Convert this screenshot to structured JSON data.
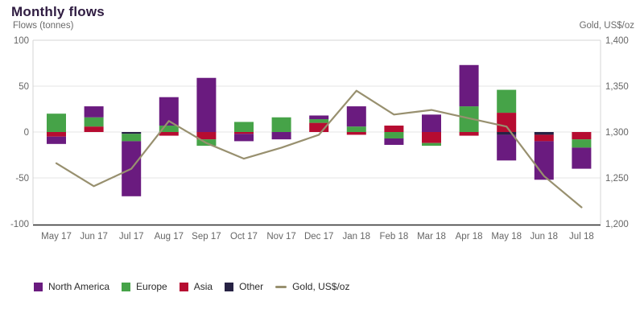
{
  "page": {
    "title": "Monthly flows",
    "left_axis_title": "Flows (tonnes)",
    "right_axis_title": "Gold, US$/oz"
  },
  "chart_data": {
    "type": "bar",
    "subtype": "stacked-columns-with-line-overlay",
    "title": "Monthly flows",
    "ylabel_left": "Flows (tonnes)",
    "ylabel_right": "Gold, US$/oz",
    "grid": true,
    "legend_position": "bottom-left",
    "categories": [
      "May 17",
      "Jun 17",
      "Jul 17",
      "Aug 17",
      "Sep 17",
      "Oct 17",
      "Nov 17",
      "Dec 17",
      "Jan 18",
      "Feb 18",
      "Mar 18",
      "Apr 18",
      "May 18",
      "Jun 18",
      "Jul 18"
    ],
    "series": [
      {
        "name": "North America",
        "color": "#6a1b7f",
        "values": [
          -8,
          12,
          -60,
          31,
          59,
          -8,
          -8,
          4,
          22,
          -7,
          19,
          45,
          -28,
          -42,
          -23
        ]
      },
      {
        "name": "Europe",
        "color": "#46a348",
        "values": [
          20,
          10,
          -8,
          7,
          -7,
          11,
          16,
          4,
          6,
          -7,
          -3,
          28,
          25,
          0,
          -9
        ]
      },
      {
        "name": "Asia",
        "color": "#b60c31",
        "values": [
          -5,
          6,
          0,
          -4,
          -8,
          -2,
          0,
          10,
          -3,
          7,
          -12,
          -4,
          21,
          -7,
          -8
        ]
      },
      {
        "name": "Other",
        "color": "#272244",
        "values": [
          0,
          0,
          -2,
          0,
          0,
          0,
          0,
          0,
          0,
          0,
          0,
          0,
          -3,
          -3,
          0
        ]
      }
    ],
    "stack_order_from_zero": [
      "Other",
      "Asia",
      "Europe",
      "North America"
    ],
    "line_series": {
      "name": "Gold, US$/oz",
      "color": "#98906f",
      "values": [
        1266,
        1241,
        1260,
        1312,
        1288,
        1271,
        1283,
        1297,
        1345,
        1319,
        1324,
        1315,
        1306,
        1252,
        1218
      ]
    },
    "left_axis": {
      "ticks": [
        "100",
        "50",
        "0",
        "-50",
        "-100"
      ],
      "tick_values": [
        100,
        50,
        0,
        -50,
        -100
      ],
      "range": [
        -100,
        100
      ]
    },
    "right_axis": {
      "ticks": [
        "1,400",
        "1,350",
        "1,300",
        "1,250",
        "1,200"
      ],
      "tick_values": [
        1400,
        1350,
        1300,
        1250,
        1200
      ],
      "range": [
        1200,
        1400
      ]
    }
  },
  "style": {
    "grid_color": "#e4e4e4",
    "frame_color": "#d4d4d4",
    "baseline_color": "#2e2e2e",
    "tick_text_color": "#666666",
    "title_color": "#2f1c41"
  }
}
